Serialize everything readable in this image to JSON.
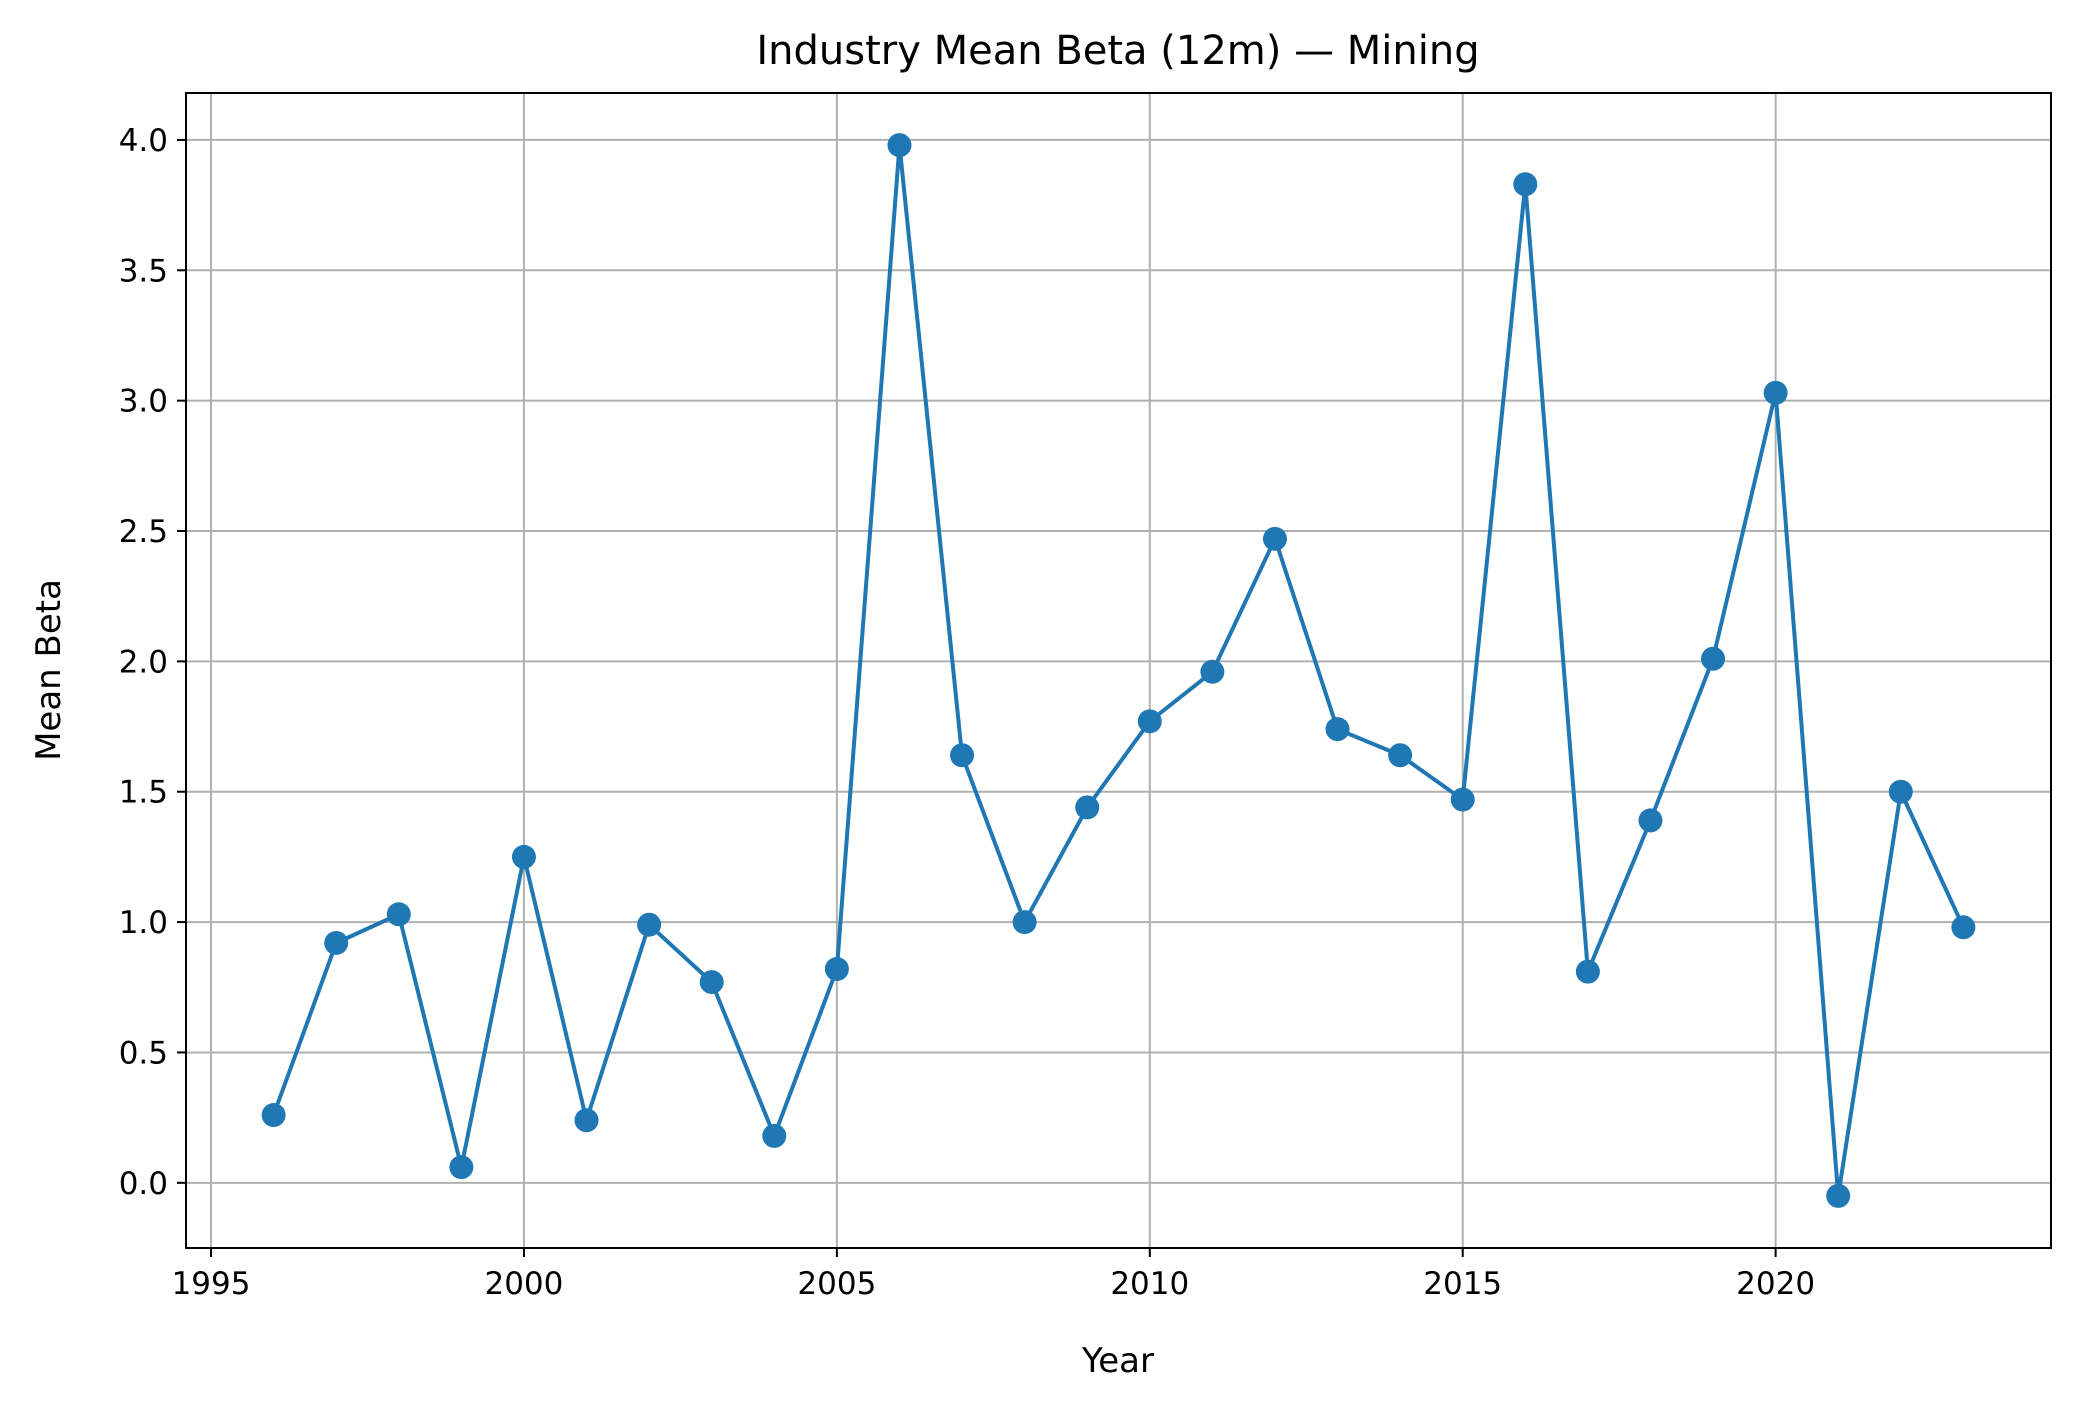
{
  "chart_data": {
    "type": "line",
    "title": "Industry Mean Beta (12m) — Mining",
    "xlabel": "Year",
    "ylabel": "Mean Beta",
    "xlim": [
      1994.6,
      2024.4
    ],
    "ylim": [
      -0.25,
      4.18
    ],
    "xticks": [
      1995,
      2000,
      2005,
      2010,
      2015,
      2020
    ],
    "xtick_labels": [
      "1995",
      "2000",
      "2005",
      "2010",
      "2015",
      "2020"
    ],
    "yticks": [
      0.0,
      0.5,
      1.0,
      1.5,
      2.0,
      2.5,
      3.0,
      3.5,
      4.0
    ],
    "ytick_labels": [
      "0.0",
      "0.5",
      "1.0",
      "1.5",
      "2.0",
      "2.5",
      "3.0",
      "3.5",
      "4.0"
    ],
    "grid": true,
    "series": [
      {
        "color": "#1f77b4",
        "marker": "circle",
        "x": [
          1996,
          1997,
          1998,
          1999,
          2000,
          2001,
          2002,
          2003,
          2004,
          2005,
          2006,
          2007,
          2008,
          2009,
          2010,
          2011,
          2012,
          2013,
          2014,
          2015,
          2016,
          2017,
          2018,
          2019,
          2020,
          2021,
          2022,
          2023
        ],
        "y": [
          0.26,
          0.92,
          1.03,
          0.06,
          1.25,
          0.24,
          0.99,
          0.77,
          0.18,
          0.82,
          3.98,
          1.64,
          1.0,
          1.44,
          1.77,
          1.96,
          2.47,
          1.74,
          1.64,
          1.47,
          3.83,
          0.81,
          1.39,
          2.01,
          3.03,
          -0.05,
          1.5,
          0.98
        ]
      }
    ]
  }
}
